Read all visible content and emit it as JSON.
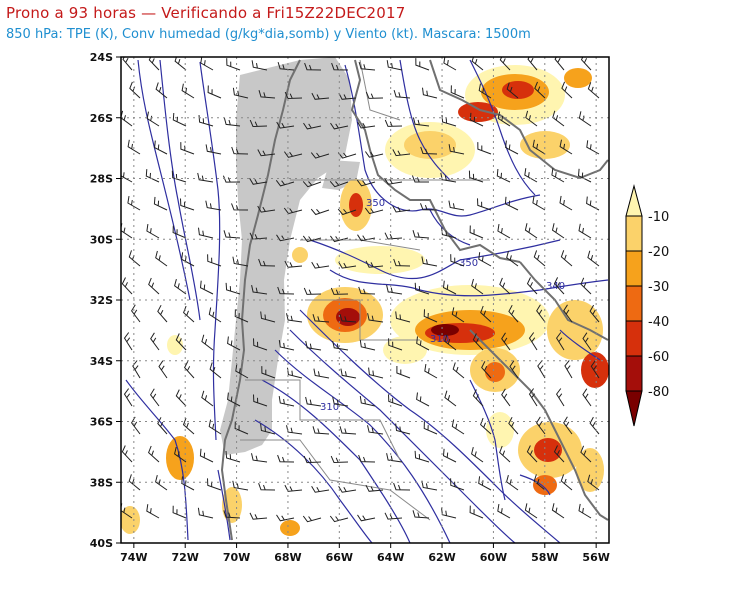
{
  "title": "Prono a 93 horas — Verificando a Fri15Z22DEC2017",
  "subtitle": "850 hPa: TPE (K), Conv humedad (g/kg*dia,somb) y Viento (kt). Mascara: 1500m",
  "lat_ticks": [
    "24S",
    "26S",
    "28S",
    "30S",
    "32S",
    "34S",
    "36S",
    "38S",
    "40S"
  ],
  "lon_ticks": [
    "74W",
    "72W",
    "70W",
    "68W",
    "66W",
    "64W",
    "62W",
    "60W",
    "58W",
    "56W"
  ],
  "contour_labels": [
    "350",
    "350",
    "340",
    "310",
    "310"
  ],
  "legend": {
    "labels": [
      "-10",
      "-20",
      "-30",
      "-40",
      "-60",
      "-80"
    ],
    "colors": [
      "#fff5b0",
      "#fbd26a",
      "#f6a21c",
      "#ee6a12",
      "#d6300c",
      "#a40e0a",
      "#7a0000"
    ]
  },
  "colors": {
    "title": "#c41a1a",
    "subtitle": "#1f8fd0",
    "contour": "#2f2fa0",
    "mask": "#c8c8c8",
    "borders": "#707070"
  }
}
